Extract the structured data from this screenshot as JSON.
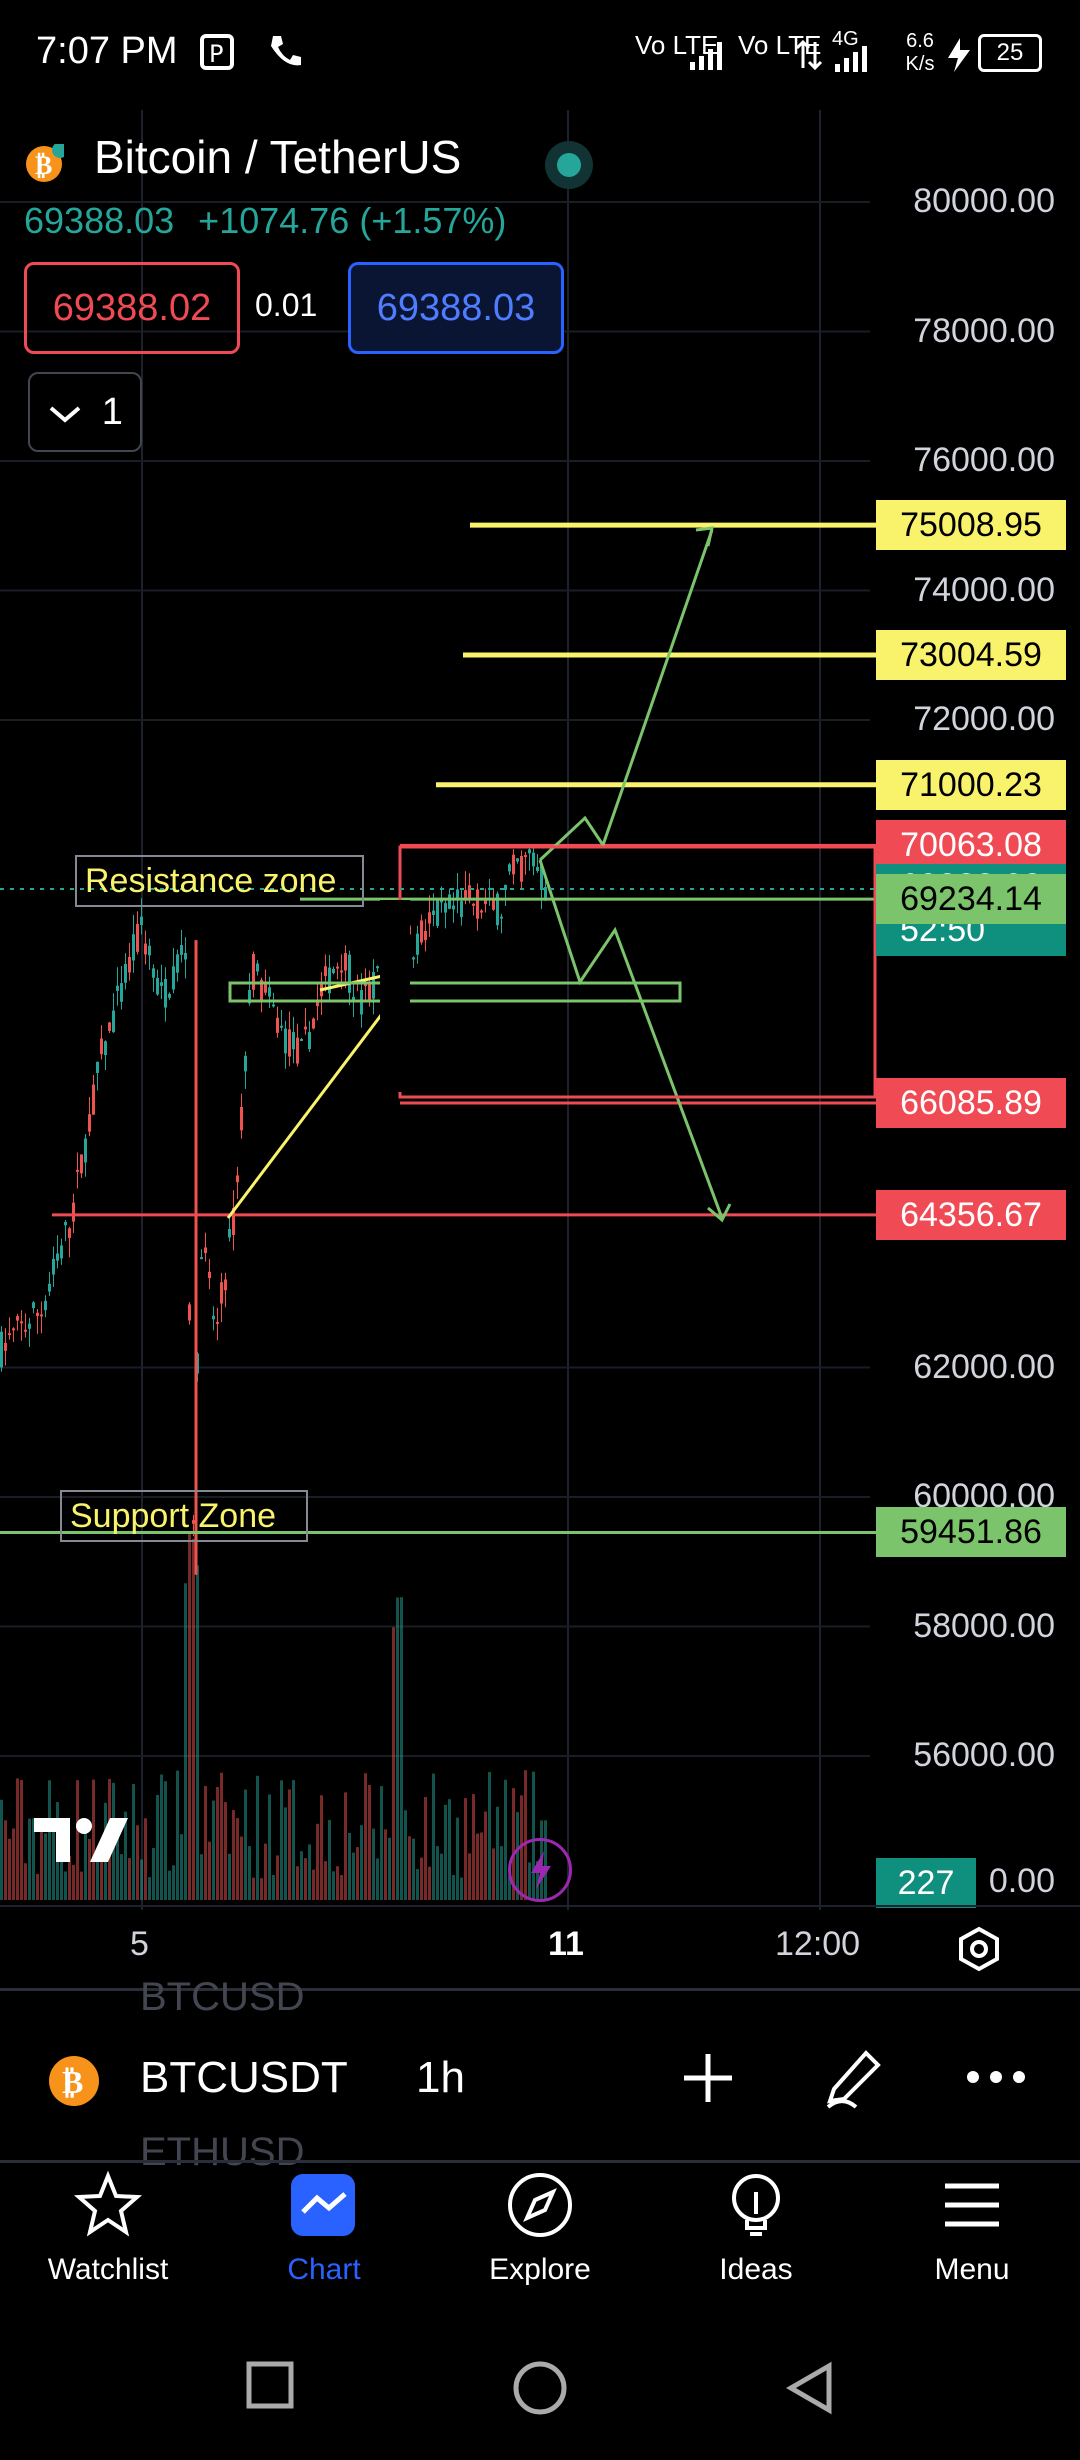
{
  "status": {
    "time": "7:07 PM",
    "net1": "Vo LTE",
    "net2": "Vo LTE",
    "net3": "4G",
    "speed": "6.6 K/s",
    "battery": "25"
  },
  "header": {
    "title": "Bitcoin / TetherUS",
    "last_price": "69388.03",
    "change": "+1074.76 (+1.57%)",
    "sell_price": "69388.02",
    "spread": "0.01",
    "buy_price": "69388.03",
    "quantity": "1"
  },
  "price_axis": {
    "ticks": [
      "80000.00",
      "78000.00",
      "76000.00",
      "74000.00",
      "72000.00",
      "62000.00",
      "60000.00",
      "58000.00",
      "56000.00"
    ],
    "tags": [
      {
        "value": "75008.95",
        "color": "#f9f26b"
      },
      {
        "value": "73004.59",
        "color": "#f9f26b"
      },
      {
        "value": "71000.23",
        "color": "#f9f26b"
      },
      {
        "value": "70063.08",
        "color": "#f04a55"
      },
      {
        "value": "69388.03",
        "color": "#0f8f7e",
        "sub": "52:50"
      },
      {
        "value": "69234.14",
        "color": "#7cc46b"
      },
      {
        "value": "66085.89",
        "color": "#f04a55"
      },
      {
        "value": "64356.67",
        "color": "#f04a55"
      },
      {
        "value": "59451.86",
        "color": "#7cc46b"
      }
    ],
    "volume_tag": "227",
    "volume_tick_tail": "0.00"
  },
  "annotations": {
    "resistance": "Resistance zone",
    "support": "Support Zone"
  },
  "time_axis": {
    "labels": [
      "5",
      "11",
      "12:00"
    ]
  },
  "symbol_bar": {
    "symbol": "BTCUSDT",
    "interval": "1h",
    "ghost_above": "BTCUSD",
    "ghost_below": "ETHUSD"
  },
  "nav": [
    {
      "label": "Watchlist",
      "icon": "star-icon"
    },
    {
      "label": "Chart",
      "icon": "chart-icon"
    },
    {
      "label": "Explore",
      "icon": "compass-icon"
    },
    {
      "label": "Ideas",
      "icon": "bulb-icon"
    },
    {
      "label": "Menu",
      "icon": "hamburger-icon"
    }
  ],
  "colors": {
    "accent": "#2962ff",
    "bull": "#26a69a",
    "bear": "#ef5350",
    "yellow": "#f9f26b",
    "green": "#7cc46b"
  }
}
